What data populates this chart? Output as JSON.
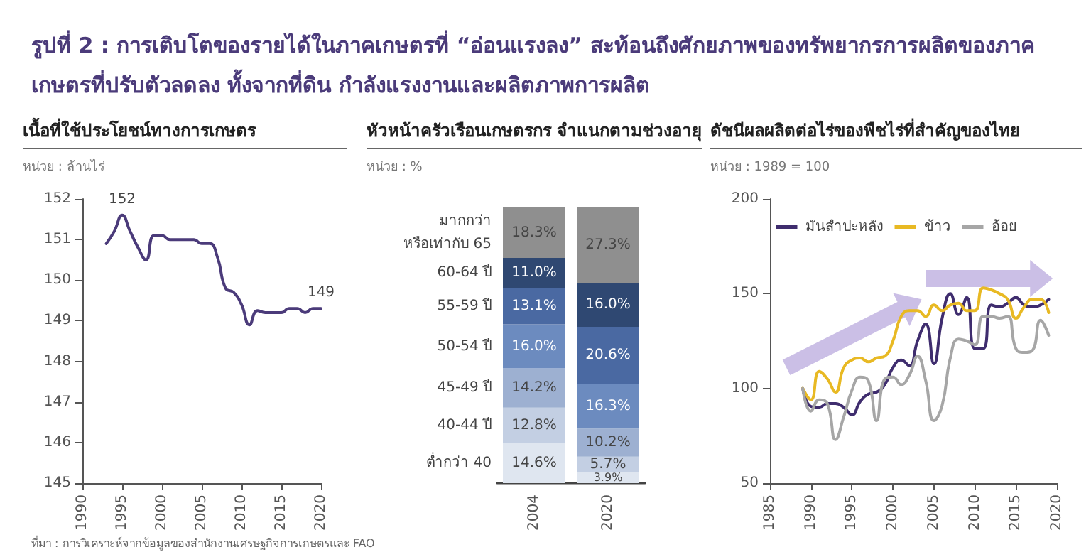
{
  "chart_data": [
    {
      "type": "other",
      "title": "รูปที่ 2 : การเติบโตของรายได้ในภาคเกษตรที่ “อ่อนแรงลง” สะท้อนถึงศักยภาพของทรัพยากรการผลิตของภาคเกษตรที่ปรับตัวลดลง ทั้งจากที่ดิน กำลังแรงงานและผลิตภาพการผลิต",
      "annotations": [
        "ที่มา : การวิเคราะห์จากข้อมูลของสำนักงานเศรษฐกิจการเกษตรและ FAO"
      ]
    },
    {
      "type": "line",
      "title": "เนื้อที่ใช้ประโยชน์ทางการเกษตร",
      "subtitle": "หน่วย : ล้านไร่",
      "color": "#4b3b7a",
      "x": [
        1993,
        1994,
        1995,
        1996,
        1997,
        1998,
        1999,
        2000,
        2001,
        2002,
        2003,
        2004,
        2005,
        2006,
        2007,
        2008,
        2009,
        2010,
        2011,
        2012,
        2013,
        2014,
        2015,
        2016,
        2017,
        2018,
        2019,
        2020
      ],
      "values": [
        150.9,
        151.2,
        151.6,
        151.2,
        150.8,
        150.5,
        151.1,
        151.1,
        151.0,
        151.0,
        151.0,
        151.0,
        150.9,
        150.9,
        150.55,
        149.8,
        149.7,
        149.4,
        148.9,
        149.25,
        149.2,
        149.2,
        149.2,
        149.3,
        149.3,
        149.2,
        149.3,
        149.3
      ],
      "xlim": [
        1990,
        2020
      ],
      "xticks": [
        1990,
        1995,
        2000,
        2005,
        2010,
        2015,
        2020
      ],
      "ylim": [
        145,
        152
      ],
      "yticks": [
        145,
        146,
        147,
        148,
        149,
        150,
        151,
        152
      ],
      "annotations": [
        {
          "text": "152",
          "x": 1995,
          "y": 151.6
        },
        {
          "text": "149",
          "x": 2020,
          "y": 149.3
        }
      ]
    },
    {
      "type": "bar",
      "stacked": true,
      "title": "หัวหน้าครัวเรือนเกษตรกร จำแนกตามช่วงอายุ",
      "subtitle": "หน่วย : %",
      "categories": [
        "2004",
        "2020"
      ],
      "tick_labels": "x",
      "series": [
        {
          "name": "ต่ำกว่า 40",
          "color": "#dfe6f0",
          "values": [
            14.6,
            3.9
          ],
          "value_labels": [
            "14.6%",
            "3.9%"
          ]
        },
        {
          "name": "40-44 ปี",
          "color": "#c3cfe3",
          "values": [
            12.8,
            5.7
          ],
          "value_labels": [
            "12.8%",
            "5.7%"
          ]
        },
        {
          "name": "45-49 ปี",
          "color": "#9db0d1",
          "values": [
            14.2,
            10.2
          ],
          "value_labels": [
            "14.2%",
            "10.2%"
          ]
        },
        {
          "name": "50-54 ปี",
          "color": "#6c8bbf",
          "values": [
            16.0,
            16.3
          ],
          "value_labels": [
            "16.0%",
            "16.3%"
          ]
        },
        {
          "name": "55-59 ปี",
          "color": "#4a69a2",
          "values": [
            13.1,
            20.6
          ],
          "value_labels": [
            "13.1%",
            "20.6%"
          ]
        },
        {
          "name": "60-64 ปี",
          "color": "#2f4872",
          "values": [
            11.0,
            16.0
          ],
          "value_labels": [
            "11.0%",
            "16.0%"
          ]
        },
        {
          "name": "มากกว่า\nหรือเท่ากับ 65",
          "color": "#8f8f8f",
          "values": [
            18.3,
            27.3
          ],
          "value_labels": [
            "18.3%",
            "27.3%"
          ]
        }
      ]
    },
    {
      "type": "line",
      "title": "ดัชนีผลผลิตต่อไร่ของพืชไร่ที่สำคัญของไทย",
      "subtitle": "หน่วย : 1989 = 100",
      "legend": "top",
      "x": [
        1989,
        1990,
        1991,
        1992,
        1993,
        1994,
        1995,
        1996,
        1997,
        1998,
        1999,
        2000,
        2001,
        2002,
        2003,
        2004,
        2005,
        2006,
        2007,
        2008,
        2009,
        2010,
        2011,
        2012,
        2013,
        2014,
        2015,
        2016,
        2017,
        2018,
        2019
      ],
      "xlim": [
        1985,
        2020
      ],
      "xticks": [
        1985,
        1990,
        1995,
        2000,
        2005,
        2010,
        2015,
        2020
      ],
      "ylim": [
        50,
        200
      ],
      "yticks": [
        50,
        100,
        150,
        200
      ],
      "series": [
        {
          "name": "มันสำปะหลัง",
          "color": "#3f2d6e",
          "values": [
            100,
            90.5,
            90,
            92,
            92,
            90,
            86,
            93,
            97,
            98,
            102,
            111,
            115,
            112,
            125,
            134,
            113,
            137,
            150,
            139,
            148,
            121,
            121,
            144,
            143,
            145,
            148,
            144,
            143,
            144,
            147
          ]
        },
        {
          "name": "ข้าว",
          "color": "#e8b923",
          "values": [
            100,
            94,
            109,
            105,
            98,
            111,
            115,
            116,
            114,
            116,
            117,
            125,
            138,
            141,
            141,
            138,
            144,
            141,
            144,
            145,
            141,
            141,
            153,
            152,
            150,
            147,
            137,
            143,
            147,
            147,
            140
          ]
        },
        {
          "name": "อ้อย",
          "color": "#a6a6a6",
          "values": [
            100,
            88,
            94,
            92,
            73,
            85,
            99,
            106,
            104,
            83,
            105,
            106,
            102,
            107,
            117,
            104,
            83,
            91,
            116,
            126,
            125,
            123,
            138,
            138,
            137,
            138,
            121,
            119,
            120,
            136,
            128
          ]
        }
      ]
    }
  ]
}
